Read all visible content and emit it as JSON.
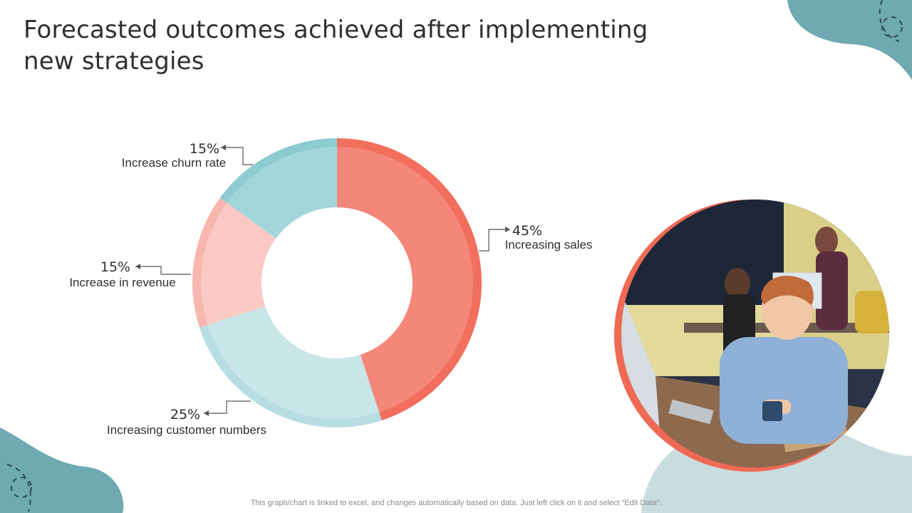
{
  "title": "Forecasted outcomes achieved after implementing new strategies",
  "footnote": "This graph/chart is linked to excel,  and changes automatically based on data. Just left click on it and select “Edit Data”.",
  "colors": {
    "accent_teal": "#6fa9b1",
    "light_teal_bg": "#c9dcdf",
    "ring_coral": "#f26f5d",
    "photo_ring": "#ef6a55"
  },
  "chart_data": {
    "type": "pie",
    "variant": "donut",
    "title": "",
    "slices": [
      {
        "label": "Increasing sales",
        "value": 45,
        "value_label": "45%",
        "color": "#f4877a",
        "outer_color": "#f26f5d"
      },
      {
        "label": "Increasing customer numbers",
        "value": 25,
        "value_label": "25%",
        "color": "#c8e5e8",
        "outer_color": "#b7dde2"
      },
      {
        "label": "Increase in revenue",
        "value": 15,
        "value_label": "15%",
        "color": "#fbc9c3",
        "outer_color": "#f7b6ae"
      },
      {
        "label": "Increase churn rate",
        "value": 15,
        "value_label": "15%",
        "color": "#a3d6da",
        "outer_color": "#8ccbd0"
      }
    ]
  },
  "image": {
    "subject": "young man working at a desktop computer in an office"
  }
}
